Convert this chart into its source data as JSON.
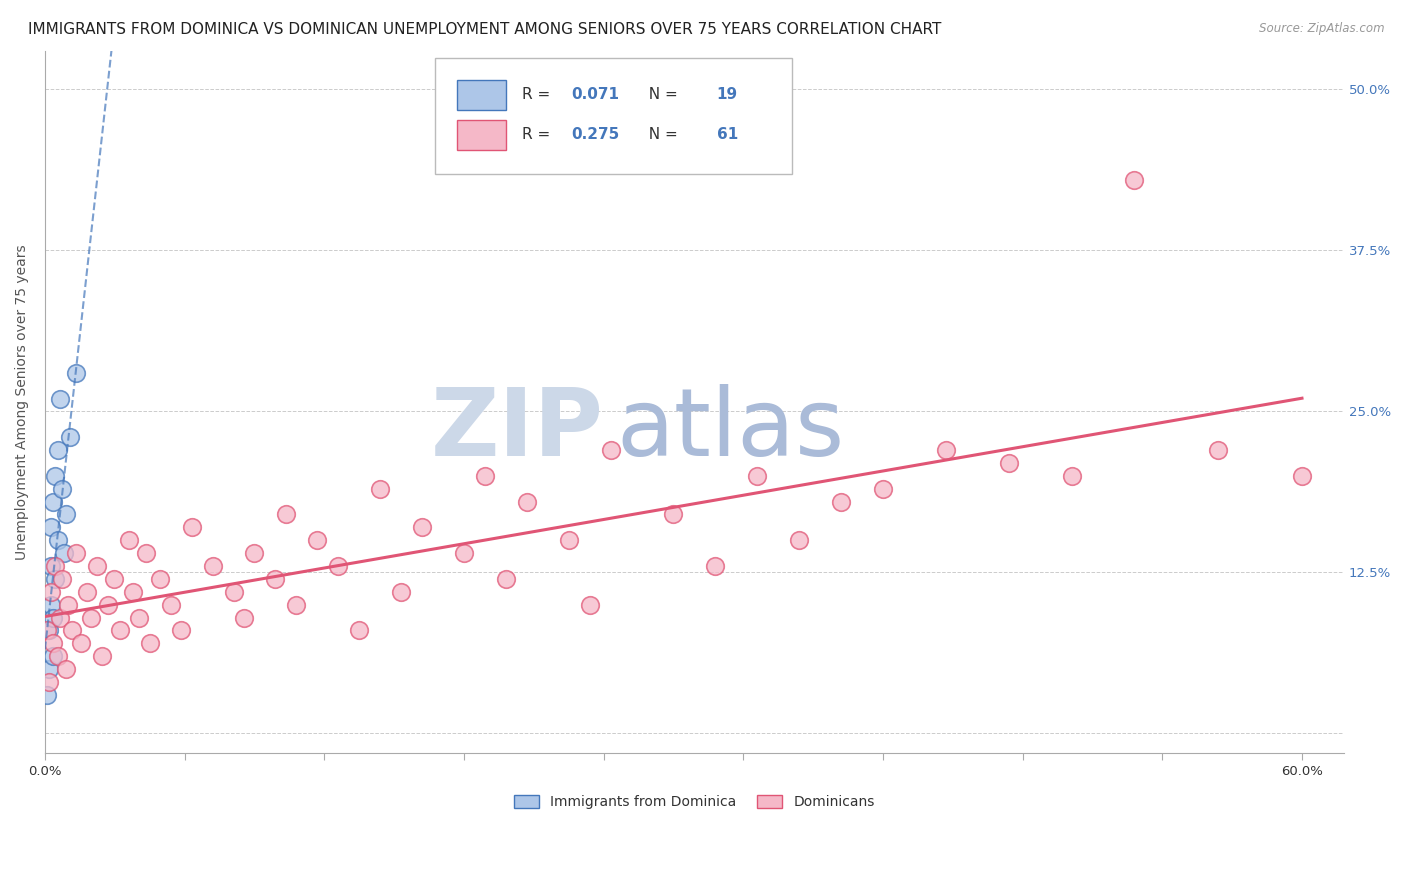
{
  "title": "IMMIGRANTS FROM DOMINICA VS DOMINICAN UNEMPLOYMENT AMONG SENIORS OVER 75 YEARS CORRELATION CHART",
  "source": "Source: ZipAtlas.com",
  "ylabel": "Unemployment Among Seniors over 75 years",
  "legend_label_blue": "Immigrants from Dominica",
  "legend_label_pink": "Dominicans",
  "R_blue": 0.071,
  "N_blue": 19,
  "R_pink": 0.275,
  "N_pink": 61,
  "color_blue": "#adc6e8",
  "color_pink": "#f5b8c8",
  "color_blue_line": "#4477bb",
  "color_pink_line": "#e05575",
  "right_tick_color": "#4477bb",
  "background_color": "#ffffff",
  "watermark_ZIP_color": "#ccd8e8",
  "watermark_atlas_color": "#aabbd8",
  "blue_scatter_x": [
    0.001,
    0.002,
    0.002,
    0.003,
    0.003,
    0.003,
    0.004,
    0.004,
    0.004,
    0.005,
    0.005,
    0.006,
    0.006,
    0.007,
    0.008,
    0.009,
    0.01,
    0.012,
    0.015
  ],
  "blue_scatter_y": [
    0.03,
    0.05,
    0.08,
    0.1,
    0.13,
    0.16,
    0.06,
    0.09,
    0.18,
    0.12,
    0.2,
    0.15,
    0.22,
    0.26,
    0.19,
    0.14,
    0.17,
    0.23,
    0.28
  ],
  "pink_scatter_x": [
    0.001,
    0.002,
    0.003,
    0.004,
    0.005,
    0.006,
    0.007,
    0.008,
    0.01,
    0.011,
    0.013,
    0.015,
    0.017,
    0.02,
    0.022,
    0.025,
    0.027,
    0.03,
    0.033,
    0.036,
    0.04,
    0.042,
    0.045,
    0.048,
    0.05,
    0.055,
    0.06,
    0.065,
    0.07,
    0.08,
    0.09,
    0.095,
    0.1,
    0.11,
    0.115,
    0.12,
    0.13,
    0.14,
    0.15,
    0.16,
    0.17,
    0.18,
    0.2,
    0.21,
    0.22,
    0.23,
    0.25,
    0.26,
    0.27,
    0.3,
    0.32,
    0.34,
    0.36,
    0.38,
    0.4,
    0.43,
    0.46,
    0.49,
    0.52,
    0.56,
    0.6
  ],
  "pink_scatter_y": [
    0.08,
    0.04,
    0.11,
    0.07,
    0.13,
    0.06,
    0.09,
    0.12,
    0.05,
    0.1,
    0.08,
    0.14,
    0.07,
    0.11,
    0.09,
    0.13,
    0.06,
    0.1,
    0.12,
    0.08,
    0.15,
    0.11,
    0.09,
    0.14,
    0.07,
    0.12,
    0.1,
    0.08,
    0.16,
    0.13,
    0.11,
    0.09,
    0.14,
    0.12,
    0.17,
    0.1,
    0.15,
    0.13,
    0.08,
    0.19,
    0.11,
    0.16,
    0.14,
    0.2,
    0.12,
    0.18,
    0.15,
    0.1,
    0.22,
    0.17,
    0.13,
    0.2,
    0.15,
    0.18,
    0.19,
    0.22,
    0.21,
    0.2,
    0.43,
    0.22,
    0.2
  ],
  "xlim_min": 0.0,
  "xlim_max": 0.62,
  "ylim_min": -0.015,
  "ylim_max": 0.53,
  "yticks": [
    0.0,
    0.125,
    0.25,
    0.375,
    0.5
  ],
  "pink_trend_start_y": 0.115,
  "pink_trend_end_y": 0.238,
  "title_fontsize": 11,
  "axis_fontsize": 10,
  "tick_fontsize": 9.5,
  "legend_fontsize": 11
}
